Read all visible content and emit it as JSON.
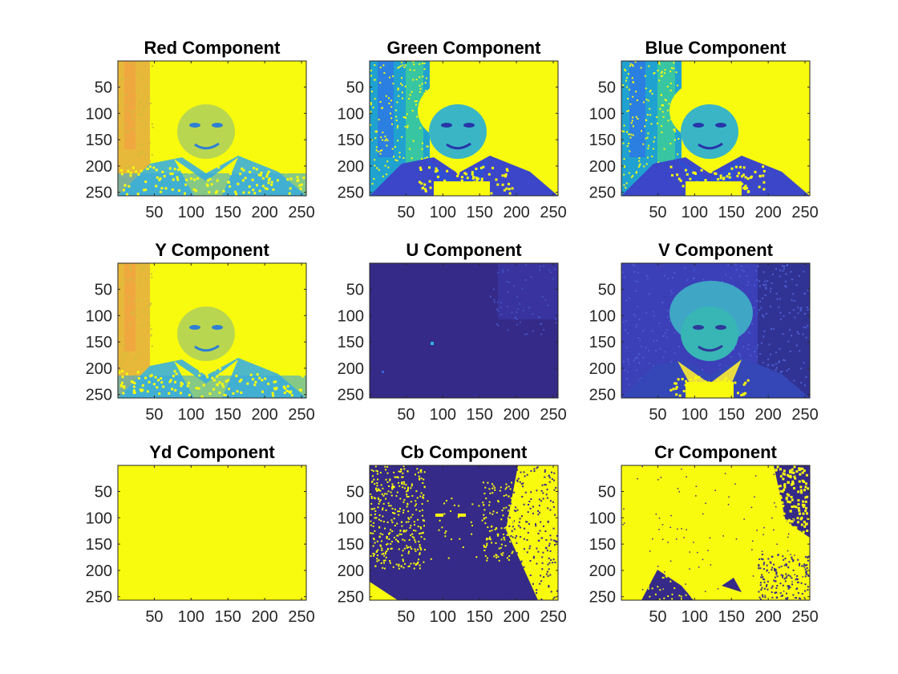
{
  "colors": {
    "background": "#ffffff",
    "colormap": "parula",
    "parula_low": "#352a87",
    "parula_mid": "#1cb2c4",
    "parula_high": "#f9fb0e",
    "axis": "#262626"
  },
  "chart_data": [
    {
      "type": "heatmap",
      "title": "Red Component",
      "xticks": [
        50,
        100,
        150,
        200,
        250
      ],
      "yticks": [
        50,
        100,
        150,
        200,
        250
      ],
      "xlim": [
        1,
        256
      ],
      "ylim": [
        1,
        256
      ],
      "y_reversed": true,
      "fill": "image-high",
      "dominant_color": "#f9fb0e"
    },
    {
      "type": "heatmap",
      "title": "Green Component",
      "xticks": [
        50,
        100,
        150,
        200,
        250
      ],
      "yticks": [
        50,
        100,
        150,
        200,
        250
      ],
      "xlim": [
        1,
        256
      ],
      "ylim": [
        1,
        256
      ],
      "y_reversed": true,
      "fill": "image-mixed",
      "dominant_color": "#f9fb0e"
    },
    {
      "type": "heatmap",
      "title": "Blue Component",
      "xticks": [
        50,
        100,
        150,
        200,
        250
      ],
      "yticks": [
        50,
        100,
        150,
        200,
        250
      ],
      "xlim": [
        1,
        256
      ],
      "ylim": [
        1,
        256
      ],
      "y_reversed": true,
      "fill": "image-mixed",
      "dominant_color": "#f9fb0e"
    },
    {
      "type": "heatmap",
      "title": "Y Component",
      "xticks": [
        50,
        100,
        150,
        200,
        250
      ],
      "yticks": [
        50,
        100,
        150,
        200,
        250
      ],
      "xlim": [
        1,
        256
      ],
      "ylim": [
        1,
        256
      ],
      "y_reversed": true,
      "fill": "image-high",
      "dominant_color": "#f9fb0e"
    },
    {
      "type": "heatmap",
      "title": "U Component",
      "xticks": [
        50,
        100,
        150,
        200,
        250
      ],
      "yticks": [
        50,
        100,
        150,
        200,
        250
      ],
      "xlim": [
        1,
        256
      ],
      "ylim": [
        1,
        256
      ],
      "y_reversed": true,
      "fill": "near-uniform-low",
      "dominant_color": "#352a87"
    },
    {
      "type": "heatmap",
      "title": "V Component",
      "xticks": [
        50,
        100,
        150,
        200,
        250
      ],
      "yticks": [
        50,
        100,
        150,
        200,
        250
      ],
      "xlim": [
        1,
        256
      ],
      "ylim": [
        1,
        256
      ],
      "y_reversed": true,
      "fill": "image-low",
      "dominant_color": "#3d52c8"
    },
    {
      "type": "heatmap",
      "title": "Yd Component",
      "xticks": [
        50,
        100,
        150,
        200,
        250
      ],
      "yticks": [
        50,
        100,
        150,
        200,
        250
      ],
      "xlim": [
        1,
        256
      ],
      "ylim": [
        1,
        256
      ],
      "y_reversed": true,
      "fill": "uniform-high",
      "dominant_color": "#f9fb0e"
    },
    {
      "type": "heatmap",
      "title": "Cb Component",
      "xticks": [
        50,
        100,
        150,
        200,
        250
      ],
      "yticks": [
        50,
        100,
        150,
        200,
        250
      ],
      "xlim": [
        1,
        256
      ],
      "ylim": [
        1,
        256
      ],
      "y_reversed": true,
      "fill": "binary-low",
      "dominant_color": "#352a87"
    },
    {
      "type": "heatmap",
      "title": "Cr Component",
      "xticks": [
        50,
        100,
        150,
        200,
        250
      ],
      "yticks": [
        50,
        100,
        150,
        200,
        250
      ],
      "xlim": [
        1,
        256
      ],
      "ylim": [
        1,
        256
      ],
      "y_reversed": true,
      "fill": "binary-high",
      "dominant_color": "#f9fb0e"
    }
  ]
}
